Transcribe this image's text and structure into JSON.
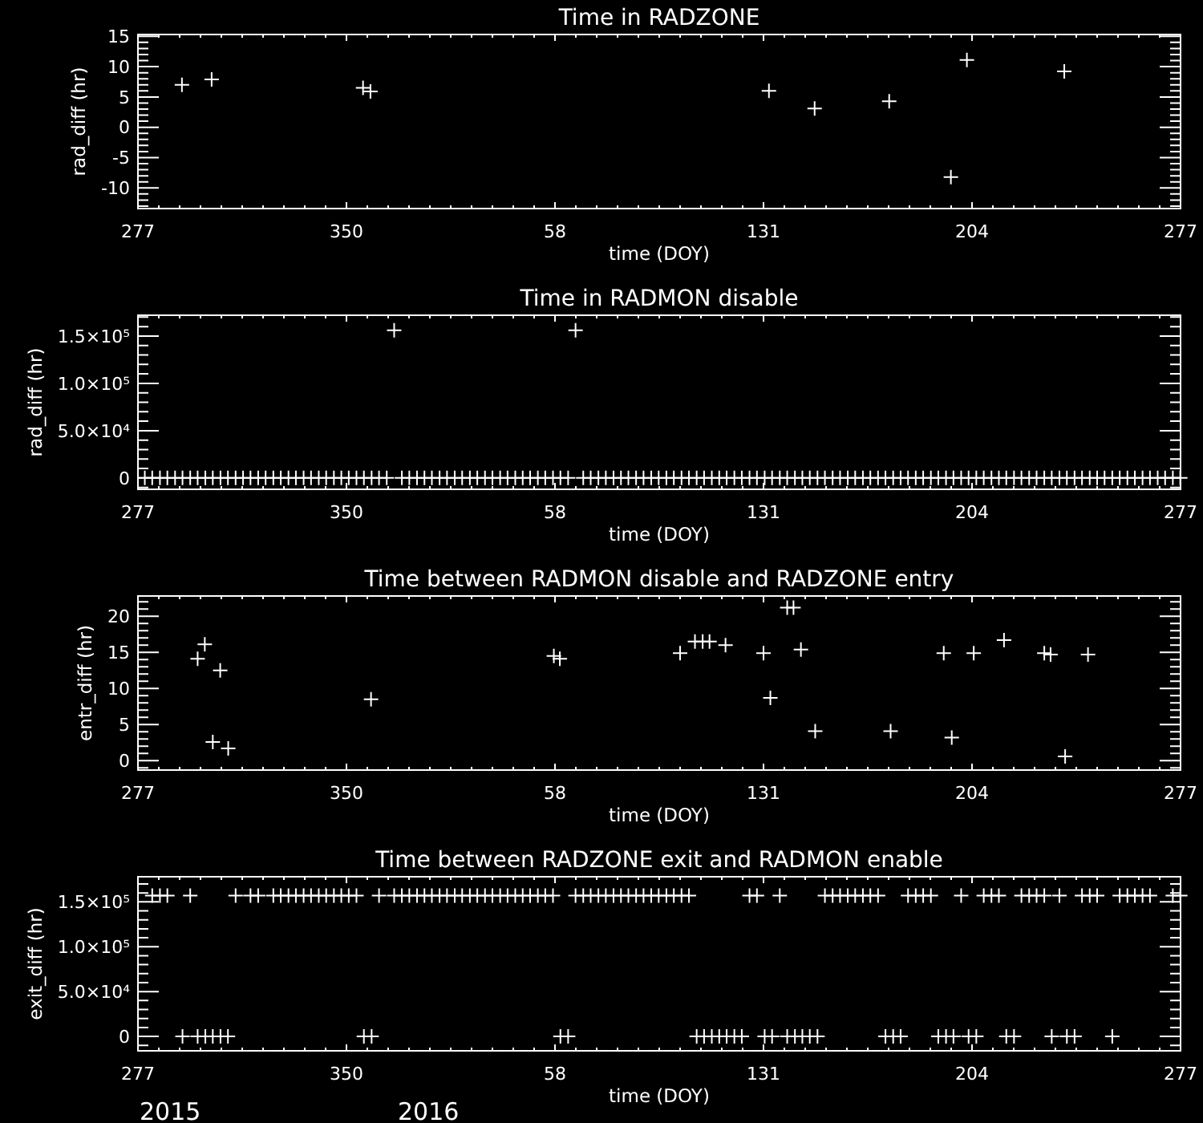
{
  "chart_data": [
    {
      "type": "scatter",
      "title": "Time in RADZONE",
      "xlabel": "time (DOY)",
      "ylabel": "rad_diff (hr)",
      "marker": "cross",
      "xlim": [
        "2015-10-04",
        "2016-10-03"
      ],
      "xticks": [
        {
          "value": "2015-10-04",
          "label": "277"
        },
        {
          "value": "2015-10-11T07:12",
          "label": null
        },
        {
          "value": "2015-10-18T14:24",
          "label": null
        },
        {
          "value": "2015-10-25T21:36",
          "label": null
        },
        {
          "value": "2015-11-02T04:48",
          "label": null
        },
        {
          "value": "2015-11-09T12:00",
          "label": null
        },
        {
          "value": "2015-11-16T19:12",
          "label": null
        },
        {
          "value": "2015-11-24T02:24",
          "label": null
        },
        {
          "value": "2015-12-01T09:36",
          "label": null
        },
        {
          "value": "2015-12-08T16:48",
          "label": null
        },
        {
          "value": "2015-12-16",
          "label": "350"
        },
        {
          "value": "2015-12-23T07:12",
          "label": null
        },
        {
          "value": "2015-12-30T14:24",
          "label": null
        },
        {
          "value": "2016-01-06T21:36",
          "label": null
        },
        {
          "value": "2016-01-14T04:48",
          "label": null
        },
        {
          "value": "2016-01-21T12:00",
          "label": null
        },
        {
          "value": "2016-01-28T19:12",
          "label": null
        },
        {
          "value": "2016-02-05T02:24",
          "label": null
        },
        {
          "value": "2016-02-12T09:36",
          "label": null
        },
        {
          "value": "2016-02-19T16:48",
          "label": null
        },
        {
          "value": "2016-02-27",
          "label": "58"
        },
        {
          "value": "2016-03-05T07:12",
          "label": null
        },
        {
          "value": "2016-03-12T14:24",
          "label": null
        },
        {
          "value": "2016-03-19T21:36",
          "label": null
        },
        {
          "value": "2016-03-27T04:48",
          "label": null
        },
        {
          "value": "2016-04-03T12:00",
          "label": null
        },
        {
          "value": "2016-04-10T19:12",
          "label": null
        },
        {
          "value": "2016-04-18T02:24",
          "label": null
        },
        {
          "value": "2016-04-25T09:36",
          "label": null
        },
        {
          "value": "2016-05-02T16:48",
          "label": null
        },
        {
          "value": "2016-05-10",
          "label": "131"
        },
        {
          "value": "2016-05-17T07:12",
          "label": null
        },
        {
          "value": "2016-05-24T14:24",
          "label": null
        },
        {
          "value": "2016-05-31T21:36",
          "label": null
        },
        {
          "value": "2016-06-08T04:48",
          "label": null
        },
        {
          "value": "2016-06-15T12:00",
          "label": null
        },
        {
          "value": "2016-06-22T19:12",
          "label": null
        },
        {
          "value": "2016-06-30T02:24",
          "label": null
        },
        {
          "value": "2016-07-07T09:36",
          "label": null
        },
        {
          "value": "2016-07-14T16:48",
          "label": null
        },
        {
          "value": "2016-07-22",
          "label": "204"
        },
        {
          "value": "2016-07-29T07:12",
          "label": null
        },
        {
          "value": "2016-08-05T14:24",
          "label": null
        },
        {
          "value": "2016-08-12T21:36",
          "label": null
        },
        {
          "value": "2016-08-20T04:48",
          "label": null
        },
        {
          "value": "2016-08-27T12:00",
          "label": null
        },
        {
          "value": "2016-09-03T19:12",
          "label": null
        },
        {
          "value": "2016-09-11T02:24",
          "label": null
        },
        {
          "value": "2016-09-18T09:36",
          "label": null
        },
        {
          "value": "2016-09-25T16:48",
          "label": null
        },
        {
          "value": "2016-10-03",
          "label": "277"
        }
      ],
      "ylim": [
        -13.4,
        15.3
      ],
      "yticks": [
        {
          "value": -13,
          "label": null
        },
        {
          "value": -12,
          "label": null
        },
        {
          "value": -11,
          "label": null
        },
        -10,
        {
          "value": -9,
          "label": null
        },
        {
          "value": -8,
          "label": null
        },
        {
          "value": -7,
          "label": null
        },
        {
          "value": -6,
          "label": null
        },
        -5,
        {
          "value": -4,
          "label": null
        },
        {
          "value": -3,
          "label": null
        },
        {
          "value": -2,
          "label": null
        },
        {
          "value": -1,
          "label": null
        },
        0,
        {
          "value": 1,
          "label": null
        },
        {
          "value": 2,
          "label": null
        },
        {
          "value": 3,
          "label": null
        },
        {
          "value": 4,
          "label": null
        },
        5,
        {
          "value": 6,
          "label": null
        },
        {
          "value": 7,
          "label": null
        },
        {
          "value": 8,
          "label": null
        },
        {
          "value": 9,
          "label": null
        },
        10,
        {
          "value": 11,
          "label": null
        },
        {
          "value": 12,
          "label": null
        },
        {
          "value": 13,
          "label": null
        },
        {
          "value": 14,
          "label": null
        },
        15
      ],
      "x": [
        "2015-10-19T09:36",
        "2015-10-29T19:12",
        "2015-12-21T19:12",
        "2015-12-24T09:36",
        "2016-05-11T21:36",
        "2016-05-27T21:36",
        "2016-06-23T00:00",
        "2016-07-14T14:24",
        "2016-07-20T04:48",
        "2016-08-23T07:12"
      ],
      "series": [
        {
          "color": "#ffffff",
          "values": [
            7.0,
            7.9,
            6.5,
            5.9,
            6.0,
            3.1,
            4.3,
            -8.2,
            11.1,
            9.2
          ]
        }
      ]
    },
    {
      "type": "scatter",
      "title": "Time in RADMON disable",
      "xlabel": "time (DOY)",
      "ylabel": "rad_diff (hr)",
      "marker": "cross",
      "xlim": [
        "2015-10-04",
        "2016-10-03"
      ],
      "xticks": [
        {
          "value": "2015-10-04",
          "label": "277"
        },
        {
          "value": "2015-10-11T07:12",
          "label": null
        },
        {
          "value": "2015-10-18T14:24",
          "label": null
        },
        {
          "value": "2015-10-25T21:36",
          "label": null
        },
        {
          "value": "2015-11-02T04:48",
          "label": null
        },
        {
          "value": "2015-11-09T12:00",
          "label": null
        },
        {
          "value": "2015-11-16T19:12",
          "label": null
        },
        {
          "value": "2015-11-24T02:24",
          "label": null
        },
        {
          "value": "2015-12-01T09:36",
          "label": null
        },
        {
          "value": "2015-12-08T16:48",
          "label": null
        },
        {
          "value": "2015-12-16",
          "label": "350"
        },
        {
          "value": "2015-12-23T07:12",
          "label": null
        },
        {
          "value": "2015-12-30T14:24",
          "label": null
        },
        {
          "value": "2016-01-06T21:36",
          "label": null
        },
        {
          "value": "2016-01-14T04:48",
          "label": null
        },
        {
          "value": "2016-01-21T12:00",
          "label": null
        },
        {
          "value": "2016-01-28T19:12",
          "label": null
        },
        {
          "value": "2016-02-05T02:24",
          "label": null
        },
        {
          "value": "2016-02-12T09:36",
          "label": null
        },
        {
          "value": "2016-02-19T16:48",
          "label": null
        },
        {
          "value": "2016-02-27",
          "label": "58"
        },
        {
          "value": "2016-03-05T07:12",
          "label": null
        },
        {
          "value": "2016-03-12T14:24",
          "label": null
        },
        {
          "value": "2016-03-19T21:36",
          "label": null
        },
        {
          "value": "2016-03-27T04:48",
          "label": null
        },
        {
          "value": "2016-04-03T12:00",
          "label": null
        },
        {
          "value": "2016-04-10T19:12",
          "label": null
        },
        {
          "value": "2016-04-18T02:24",
          "label": null
        },
        {
          "value": "2016-04-25T09:36",
          "label": null
        },
        {
          "value": "2016-05-02T16:48",
          "label": null
        },
        {
          "value": "2016-05-10",
          "label": "131"
        },
        {
          "value": "2016-05-17T07:12",
          "label": null
        },
        {
          "value": "2016-05-24T14:24",
          "label": null
        },
        {
          "value": "2016-05-31T21:36",
          "label": null
        },
        {
          "value": "2016-06-08T04:48",
          "label": null
        },
        {
          "value": "2016-06-15T12:00",
          "label": null
        },
        {
          "value": "2016-06-22T19:12",
          "label": null
        },
        {
          "value": "2016-06-30T02:24",
          "label": null
        },
        {
          "value": "2016-07-07T09:36",
          "label": null
        },
        {
          "value": "2016-07-14T16:48",
          "label": null
        },
        {
          "value": "2016-07-22",
          "label": "204"
        },
        {
          "value": "2016-07-29T07:12",
          "label": null
        },
        {
          "value": "2016-08-05T14:24",
          "label": null
        },
        {
          "value": "2016-08-12T21:36",
          "label": null
        },
        {
          "value": "2016-08-20T04:48",
          "label": null
        },
        {
          "value": "2016-08-27T12:00",
          "label": null
        },
        {
          "value": "2016-09-03T19:12",
          "label": null
        },
        {
          "value": "2016-09-11T02:24",
          "label": null
        },
        {
          "value": "2016-09-18T09:36",
          "label": null
        },
        {
          "value": "2016-09-25T16:48",
          "label": null
        },
        {
          "value": "2016-10-03",
          "label": "277"
        }
      ],
      "ylim": [
        -12000,
        172000
      ],
      "yticks": [
        {
          "value": -10000,
          "label": null
        },
        0,
        {
          "value": 10000,
          "label": null
        },
        {
          "value": 20000,
          "label": null
        },
        {
          "value": 30000,
          "label": null
        },
        {
          "value": 40000,
          "label": null
        },
        {
          "value": 50000,
          "label": "5.0×10⁴"
        },
        {
          "value": 60000,
          "label": null
        },
        {
          "value": 70000,
          "label": null
        },
        {
          "value": 80000,
          "label": null
        },
        {
          "value": 90000,
          "label": null
        },
        {
          "value": 100000,
          "label": "1.0×10⁵"
        },
        {
          "value": 110000,
          "label": null
        },
        {
          "value": 120000,
          "label": null
        },
        {
          "value": 130000,
          "label": null
        },
        {
          "value": 140000,
          "label": null
        },
        {
          "value": 150000,
          "label": "1.5×10⁵"
        },
        {
          "value": 160000,
          "label": null
        },
        {
          "value": 170000,
          "label": null
        }
      ],
      "x": [
        "2015-10-06T09:36",
        "2015-10-09T00:00",
        "2015-10-11T16:48",
        "2015-10-14T07:12",
        "2015-10-17T00:00",
        "2015-10-19T14:24",
        "2015-10-22T07:12",
        "2015-10-24T21:36",
        "2015-10-27T14:24",
        "2015-10-30T04:48",
        "2015-11-01T21:36",
        "2015-11-04T12:00",
        "2015-11-07T04:48",
        "2015-11-09T19:12",
        "2015-11-12T09:36",
        "2015-11-15T02:24",
        "2015-11-17T16:48",
        "2015-11-20T09:36",
        "2015-11-23T00:00",
        "2015-11-25T16:48",
        "2015-11-28T07:12",
        "2015-12-01T00:00",
        "2015-12-03T14:24",
        "2015-12-06T07:12",
        "2015-12-08T21:36",
        "2015-12-11T14:24",
        "2015-12-14T04:48",
        "2015-12-16T19:12",
        "2015-12-19T12:00",
        "2015-12-22T02:24",
        "2015-12-24T19:12",
        "2015-12-27T09:36",
        "2015-12-30T02:24",
        "2016-01-01T16:48",
        "2016-01-04T09:36",
        "2016-01-07T00:00",
        "2016-01-09T16:48",
        "2016-01-12T07:12",
        "2016-01-14T21:36",
        "2016-01-17T14:24",
        "2016-01-20T04:48",
        "2016-01-22T21:36",
        "2016-01-25T12:00",
        "2016-01-28T04:48",
        "2016-01-30T19:12",
        "2016-02-02T12:00",
        "2016-02-05T02:24",
        "2016-02-07T19:12",
        "2016-02-10T09:36",
        "2016-02-13T02:24",
        "2016-02-15T16:48",
        "2016-02-18T07:12",
        "2016-02-21T00:00",
        "2016-02-23T14:24",
        "2016-02-26T07:12",
        "2016-02-28T21:36",
        "2016-03-02T14:24",
        "2016-03-05T04:48",
        "2016-03-07T21:36",
        "2016-03-10T12:00",
        "2016-03-13T04:48",
        "2016-03-15T19:12",
        "2016-03-18T12:00",
        "2016-03-21T02:24",
        "2016-03-23T16:48",
        "2016-03-26T09:36",
        "2016-03-29T00:00",
        "2016-03-31T16:48",
        "2016-04-03T07:12",
        "2016-04-06T00:00",
        "2016-04-08T14:24",
        "2016-04-11T07:12",
        "2016-04-13T21:36",
        "2016-04-16T14:24",
        "2016-04-19T04:48",
        "2016-04-21T21:36",
        "2016-04-24T12:00",
        "2016-04-27T02:24",
        "2016-04-29T19:12",
        "2016-05-02T09:36",
        "2016-05-05T02:24",
        "2016-05-07T16:48",
        "2016-05-10T09:36",
        "2016-05-13T00:00",
        "2016-05-15T16:48",
        "2016-05-18T07:12",
        "2016-05-21T00:00",
        "2016-05-23T14:24",
        "2016-05-26T04:48",
        "2016-05-28T21:36",
        "2016-05-31T12:00",
        "2016-06-03T04:48",
        "2016-06-05T19:12",
        "2016-06-08T12:00",
        "2016-06-11T02:24",
        "2016-06-13T19:12",
        "2016-06-16T09:36",
        "2016-06-19T02:24",
        "2016-06-21T16:48",
        "2016-06-24T09:36",
        "2016-06-27T00:00",
        "2016-06-29T14:24",
        "2016-07-02T07:12",
        "2016-07-04T21:36",
        "2016-07-07T14:24",
        "2016-07-10T04:48",
        "2016-07-12T21:36",
        "2016-07-15T12:00",
        "2016-07-18T04:48",
        "2016-07-20T19:12",
        "2016-07-23T12:00",
        "2016-07-26T02:24",
        "2016-07-28T19:12",
        "2016-07-31T09:36",
        "2016-08-03T00:00",
        "2016-08-05T16:48",
        "2016-08-08T07:12",
        "2016-08-11T00:00",
        "2016-08-13T14:24",
        "2016-08-16T07:12",
        "2016-08-18T21:36",
        "2016-08-21T14:24",
        "2016-08-24T04:48",
        "2016-08-26T21:36",
        "2016-08-29T12:00",
        "2016-09-01T04:48",
        "2016-09-03T19:12",
        "2016-09-06T09:36",
        "2016-09-09T02:24",
        "2016-09-11T16:48",
        "2016-09-14T09:36",
        "2016-09-17T00:00",
        "2016-09-19T16:48",
        "2016-09-22T07:12",
        "2016-09-25T00:00",
        "2016-09-27T14:24",
        "2016-09-30T07:12",
        "2016-10-02T21:36"
      ],
      "series": [
        {
          "color": "#ffffff",
          "values": [
            0,
            0,
            0,
            0,
            0,
            0,
            0,
            0,
            0,
            0,
            0,
            0,
            0,
            0,
            0,
            0,
            0,
            0,
            0,
            0,
            0,
            0,
            0,
            0,
            0,
            0,
            0,
            0,
            0,
            0,
            0,
            0,
            0,
            156000,
            0,
            0,
            0,
            0,
            0,
            0,
            0,
            0,
            0,
            0,
            0,
            0,
            0,
            0,
            0,
            0,
            0,
            0,
            0,
            0,
            0,
            0,
            0,
            156000,
            0,
            0,
            0,
            0,
            0,
            0,
            0,
            0,
            0,
            0,
            0,
            0,
            0,
            0,
            0,
            0,
            0,
            0,
            0,
            0,
            0,
            0,
            0,
            0,
            0,
            0,
            0,
            0,
            0,
            0,
            0,
            0,
            0,
            0,
            0,
            0,
            0,
            0,
            0,
            0,
            0,
            0,
            0,
            0,
            0,
            0,
            0,
            0,
            0,
            0,
            0,
            0,
            0,
            0,
            0,
            0,
            0,
            0,
            0,
            0,
            0,
            0,
            0,
            0,
            0,
            0,
            0,
            0,
            0,
            0,
            0,
            0,
            0,
            0,
            0,
            0,
            0,
            0,
            0,
            0
          ]
        }
      ]
    },
    {
      "type": "scatter",
      "title": "Time between RADMON disable and RADZONE entry",
      "xlabel": "time (DOY)",
      "ylabel": "entr_diff (hr)",
      "marker": "cross",
      "xlim": [
        "2015-10-04",
        "2016-10-03"
      ],
      "xticks": [
        {
          "value": "2015-10-04",
          "label": "277"
        },
        {
          "value": "2015-10-11T07:12",
          "label": null
        },
        {
          "value": "2015-10-18T14:24",
          "label": null
        },
        {
          "value": "2015-10-25T21:36",
          "label": null
        },
        {
          "value": "2015-11-02T04:48",
          "label": null
        },
        {
          "value": "2015-11-09T12:00",
          "label": null
        },
        {
          "value": "2015-11-16T19:12",
          "label": null
        },
        {
          "value": "2015-11-24T02:24",
          "label": null
        },
        {
          "value": "2015-12-01T09:36",
          "label": null
        },
        {
          "value": "2015-12-08T16:48",
          "label": null
        },
        {
          "value": "2015-12-16",
          "label": "350"
        },
        {
          "value": "2015-12-23T07:12",
          "label": null
        },
        {
          "value": "2015-12-30T14:24",
          "label": null
        },
        {
          "value": "2016-01-06T21:36",
          "label": null
        },
        {
          "value": "2016-01-14T04:48",
          "label": null
        },
        {
          "value": "2016-01-21T12:00",
          "label": null
        },
        {
          "value": "2016-01-28T19:12",
          "label": null
        },
        {
          "value": "2016-02-05T02:24",
          "label": null
        },
        {
          "value": "2016-02-12T09:36",
          "label": null
        },
        {
          "value": "2016-02-19T16:48",
          "label": null
        },
        {
          "value": "2016-02-27",
          "label": "58"
        },
        {
          "value": "2016-03-05T07:12",
          "label": null
        },
        {
          "value": "2016-03-12T14:24",
          "label": null
        },
        {
          "value": "2016-03-19T21:36",
          "label": null
        },
        {
          "value": "2016-03-27T04:48",
          "label": null
        },
        {
          "value": "2016-04-03T12:00",
          "label": null
        },
        {
          "value": "2016-04-10T19:12",
          "label": null
        },
        {
          "value": "2016-04-18T02:24",
          "label": null
        },
        {
          "value": "2016-04-25T09:36",
          "label": null
        },
        {
          "value": "2016-05-02T16:48",
          "label": null
        },
        {
          "value": "2016-05-10",
          "label": "131"
        },
        {
          "value": "2016-05-17T07:12",
          "label": null
        },
        {
          "value": "2016-05-24T14:24",
          "label": null
        },
        {
          "value": "2016-05-31T21:36",
          "label": null
        },
        {
          "value": "2016-06-08T04:48",
          "label": null
        },
        {
          "value": "2016-06-15T12:00",
          "label": null
        },
        {
          "value": "2016-06-22T19:12",
          "label": null
        },
        {
          "value": "2016-06-30T02:24",
          "label": null
        },
        {
          "value": "2016-07-07T09:36",
          "label": null
        },
        {
          "value": "2016-07-14T16:48",
          "label": null
        },
        {
          "value": "2016-07-22",
          "label": "204"
        },
        {
          "value": "2016-07-29T07:12",
          "label": null
        },
        {
          "value": "2016-08-05T14:24",
          "label": null
        },
        {
          "value": "2016-08-12T21:36",
          "label": null
        },
        {
          "value": "2016-08-20T04:48",
          "label": null
        },
        {
          "value": "2016-08-27T12:00",
          "label": null
        },
        {
          "value": "2016-09-03T19:12",
          "label": null
        },
        {
          "value": "2016-09-11T02:24",
          "label": null
        },
        {
          "value": "2016-09-18T09:36",
          "label": null
        },
        {
          "value": "2016-09-25T16:48",
          "label": null
        },
        {
          "value": "2016-10-03",
          "label": "277"
        }
      ],
      "ylim": [
        -1.3,
        22.8
      ],
      "yticks": [
        {
          "value": -1,
          "label": null
        },
        0,
        {
          "value": 1,
          "label": null
        },
        {
          "value": 2,
          "label": null
        },
        {
          "value": 3,
          "label": null
        },
        {
          "value": 4,
          "label": null
        },
        5,
        {
          "value": 6,
          "label": null
        },
        {
          "value": 7,
          "label": null
        },
        {
          "value": 8,
          "label": null
        },
        {
          "value": 9,
          "label": null
        },
        10,
        {
          "value": 11,
          "label": null
        },
        {
          "value": 12,
          "label": null
        },
        {
          "value": 13,
          "label": null
        },
        {
          "value": 14,
          "label": null
        },
        15,
        {
          "value": 16,
          "label": null
        },
        {
          "value": 17,
          "label": null
        },
        {
          "value": 18,
          "label": null
        },
        {
          "value": 19,
          "label": null
        },
        20,
        {
          "value": 21,
          "label": null
        },
        {
          "value": 22,
          "label": null
        }
      ],
      "x": [
        "2015-10-24T21:36",
        "2015-10-27T09:36",
        "2015-10-30T04:48",
        "2015-11-01T19:12",
        "2015-11-04T14:24",
        "2015-12-24T14:24",
        "2016-02-26T14:24",
        "2016-02-28T16:48",
        "2016-04-10T19:12",
        "2016-04-16T00:00",
        "2016-04-18T16:48",
        "2016-04-21T02:24",
        "2016-04-26T16:48",
        "2016-05-10T00:00",
        "2016-05-12T09:36",
        "2016-05-18T07:12",
        "2016-05-20T12:00",
        "2016-05-23T02:24",
        "2016-05-28T02:24",
        "2016-06-23T12:00",
        "2016-07-12T02:24",
        "2016-07-14T21:36",
        "2016-07-22T14:24",
        "2016-08-02T04:48",
        "2016-08-16T07:12",
        "2016-08-18T12:00",
        "2016-08-23T14:24",
        "2016-08-31T14:24"
      ],
      "series": [
        {
          "color": "#ffffff",
          "values": [
            14.1,
            16.1,
            2.6,
            12.5,
            1.7,
            8.5,
            14.5,
            14.1,
            14.9,
            16.5,
            16.5,
            16.5,
            16.0,
            14.9,
            8.7,
            21.2,
            21.2,
            15.4,
            4.1,
            4.1,
            14.9,
            3.2,
            14.9,
            16.7,
            14.9,
            14.7,
            0.6,
            14.7
          ]
        }
      ]
    },
    {
      "type": "scatter",
      "title": "Time between RADZONE exit and RADMON enable",
      "xlabel": "time (DOY)",
      "ylabel": "exit_diff (hr)",
      "marker": "cross",
      "xlim": [
        "2015-10-04",
        "2016-10-03"
      ],
      "xticks": [
        {
          "value": "2015-10-04",
          "label": "277"
        },
        {
          "value": "2015-10-11T07:12",
          "label": null
        },
        {
          "value": "2015-10-18T14:24",
          "label": null
        },
        {
          "value": "2015-10-25T21:36",
          "label": null
        },
        {
          "value": "2015-11-02T04:48",
          "label": null
        },
        {
          "value": "2015-11-09T12:00",
          "label": null
        },
        {
          "value": "2015-11-16T19:12",
          "label": null
        },
        {
          "value": "2015-11-24T02:24",
          "label": null
        },
        {
          "value": "2015-12-01T09:36",
          "label": null
        },
        {
          "value": "2015-12-08T16:48",
          "label": null
        },
        {
          "value": "2015-12-16",
          "label": "350"
        },
        {
          "value": "2015-12-23T07:12",
          "label": null
        },
        {
          "value": "2015-12-30T14:24",
          "label": null
        },
        {
          "value": "2016-01-06T21:36",
          "label": null
        },
        {
          "value": "2016-01-14T04:48",
          "label": null
        },
        {
          "value": "2016-01-21T12:00",
          "label": null
        },
        {
          "value": "2016-01-28T19:12",
          "label": null
        },
        {
          "value": "2016-02-05T02:24",
          "label": null
        },
        {
          "value": "2016-02-12T09:36",
          "label": null
        },
        {
          "value": "2016-02-19T16:48",
          "label": null
        },
        {
          "value": "2016-02-27",
          "label": "58"
        },
        {
          "value": "2016-03-05T07:12",
          "label": null
        },
        {
          "value": "2016-03-12T14:24",
          "label": null
        },
        {
          "value": "2016-03-19T21:36",
          "label": null
        },
        {
          "value": "2016-03-27T04:48",
          "label": null
        },
        {
          "value": "2016-04-03T12:00",
          "label": null
        },
        {
          "value": "2016-04-10T19:12",
          "label": null
        },
        {
          "value": "2016-04-18T02:24",
          "label": null
        },
        {
          "value": "2016-04-25T09:36",
          "label": null
        },
        {
          "value": "2016-05-02T16:48",
          "label": null
        },
        {
          "value": "2016-05-10",
          "label": "131"
        },
        {
          "value": "2016-05-17T07:12",
          "label": null
        },
        {
          "value": "2016-05-24T14:24",
          "label": null
        },
        {
          "value": "2016-05-31T21:36",
          "label": null
        },
        {
          "value": "2016-06-08T04:48",
          "label": null
        },
        {
          "value": "2016-06-15T12:00",
          "label": null
        },
        {
          "value": "2016-06-22T19:12",
          "label": null
        },
        {
          "value": "2016-06-30T02:24",
          "label": null
        },
        {
          "value": "2016-07-07T09:36",
          "label": null
        },
        {
          "value": "2016-07-14T16:48",
          "label": null
        },
        {
          "value": "2016-07-22",
          "label": "204"
        },
        {
          "value": "2016-07-29T07:12",
          "label": null
        },
        {
          "value": "2016-08-05T14:24",
          "label": null
        },
        {
          "value": "2016-08-12T21:36",
          "label": null
        },
        {
          "value": "2016-08-20T04:48",
          "label": null
        },
        {
          "value": "2016-08-27T12:00",
          "label": null
        },
        {
          "value": "2016-09-03T19:12",
          "label": null
        },
        {
          "value": "2016-09-11T02:24",
          "label": null
        },
        {
          "value": "2016-09-18T09:36",
          "label": null
        },
        {
          "value": "2016-09-25T16:48",
          "label": null
        },
        {
          "value": "2016-10-03",
          "label": "277"
        }
      ],
      "ylim": [
        -16000,
        178000
      ],
      "yticks": [
        {
          "value": -10000,
          "label": null
        },
        0,
        {
          "value": 10000,
          "label": null
        },
        {
          "value": 20000,
          "label": null
        },
        {
          "value": 30000,
          "label": null
        },
        {
          "value": 40000,
          "label": null
        },
        {
          "value": 50000,
          "label": "5.0×10⁴"
        },
        {
          "value": 60000,
          "label": null
        },
        {
          "value": 70000,
          "label": null
        },
        {
          "value": 80000,
          "label": null
        },
        {
          "value": 90000,
          "label": null
        },
        {
          "value": 100000,
          "label": "1.0×10⁵"
        },
        {
          "value": 110000,
          "label": null
        },
        {
          "value": 120000,
          "label": null
        },
        {
          "value": 130000,
          "label": null
        },
        {
          "value": 140000,
          "label": null
        },
        {
          "value": 150000,
          "label": "1.5×10⁵"
        },
        {
          "value": 160000,
          "label": null
        },
        {
          "value": 170000,
          "label": null
        }
      ],
      "annotations": [
        "2015",
        "2016"
      ],
      "x": [
        "2015-10-09T00:00",
        "2015-10-11T16:48",
        "2015-10-14T07:12",
        "2015-10-19T14:24",
        "2015-10-22T07:12",
        "2015-10-24T21:36",
        "2015-10-27T14:24",
        "2015-10-30T04:48",
        "2015-11-01T21:36",
        "2015-11-04T12:00",
        "2015-11-07T04:48",
        "2015-11-12T09:36",
        "2015-11-15T02:24",
        "2015-11-20T09:36",
        "2015-11-23T00:00",
        "2015-11-25T16:48",
        "2015-11-28T07:12",
        "2015-12-01T00:00",
        "2015-12-03T14:24",
        "2015-12-06T07:12",
        "2015-12-08T21:36",
        "2015-12-11T14:24",
        "2015-12-14T04:48",
        "2015-12-16T19:12",
        "2015-12-19T12:00",
        "2015-12-22T02:24",
        "2015-12-24T19:12",
        "2015-12-27T09:36",
        "2016-01-01T16:48",
        "2016-01-04T09:36",
        "2016-01-07T00:00",
        "2016-01-09T16:48",
        "2016-01-12T07:12",
        "2016-01-14T21:36",
        "2016-01-17T14:24",
        "2016-01-20T04:48",
        "2016-01-22T21:36",
        "2016-01-25T12:00",
        "2016-01-28T04:48",
        "2016-01-30T19:12",
        "2016-02-02T12:00",
        "2016-02-05T02:24",
        "2016-02-07T19:12",
        "2016-02-10T09:36",
        "2016-02-13T02:24",
        "2016-02-15T16:48",
        "2016-02-18T07:12",
        "2016-02-21T00:00",
        "2016-02-23T14:24",
        "2016-02-26T07:12",
        "2016-02-28T21:36",
        "2016-03-02T14:24",
        "2016-03-05T04:48",
        "2016-03-07T21:36",
        "2016-03-10T12:00",
        "2016-03-13T04:48",
        "2016-03-15T19:12",
        "2016-03-18T12:00",
        "2016-03-21T02:24",
        "2016-03-23T16:48",
        "2016-03-26T09:36",
        "2016-03-29T00:00",
        "2016-03-31T16:48",
        "2016-04-03T07:12",
        "2016-04-06T00:00",
        "2016-04-08T14:24",
        "2016-04-11T07:12",
        "2016-04-13T21:36",
        "2016-04-16T14:24",
        "2016-04-19T04:48",
        "2016-04-21T21:36",
        "2016-04-24T12:00",
        "2016-04-27T02:24",
        "2016-04-29T19:12",
        "2016-05-02T09:36",
        "2016-05-05T02:24",
        "2016-05-07T16:48",
        "2016-05-10T09:36",
        "2016-05-13T00:00",
        "2016-05-15T16:48",
        "2016-05-18T07:12",
        "2016-05-21T00:00",
        "2016-05-23T14:24",
        "2016-05-26T04:48",
        "2016-05-28T21:36",
        "2016-05-31T12:00",
        "2016-06-03T04:48",
        "2016-06-05T19:12",
        "2016-06-08T12:00",
        "2016-06-11T02:24",
        "2016-06-13T19:12",
        "2016-06-16T09:36",
        "2016-06-19T02:24",
        "2016-06-21T16:48",
        "2016-06-24T09:36",
        "2016-06-27T00:00",
        "2016-06-29T14:24",
        "2016-07-02T07:12",
        "2016-07-04T21:36",
        "2016-07-07T14:24",
        "2016-07-10T04:48",
        "2016-07-12T21:36",
        "2016-07-15T12:00",
        "2016-07-18T04:48",
        "2016-07-20T19:12",
        "2016-07-23T12:00",
        "2016-07-26T02:24",
        "2016-07-28T19:12",
        "2016-07-31T09:36",
        "2016-08-03T00:00",
        "2016-08-05T16:48",
        "2016-08-08T07:12",
        "2016-08-11T00:00",
        "2016-08-13T14:24",
        "2016-08-16T07:12",
        "2016-08-18T21:36",
        "2016-08-21T14:24",
        "2016-08-24T04:48",
        "2016-08-26T21:36",
        "2016-08-29T12:00",
        "2016-09-01T04:48",
        "2016-09-03T19:12",
        "2016-09-09T02:24",
        "2016-09-11T16:48",
        "2016-09-14T09:36",
        "2016-09-17T00:00",
        "2016-09-19T16:48",
        "2016-09-22T07:12",
        "2016-09-30T07:12",
        "2016-10-02T21:36"
      ],
      "series": [
        {
          "color": "#ffffff",
          "values": [
            157000,
            157000,
            157000,
            0,
            157000,
            0,
            0,
            0,
            0,
            0,
            157000,
            157000,
            157000,
            157000,
            157000,
            157000,
            157000,
            157000,
            157000,
            157000,
            157000,
            157000,
            157000,
            157000,
            157000,
            0,
            0,
            157000,
            157000,
            157000,
            157000,
            157000,
            157000,
            157000,
            157000,
            157000,
            157000,
            157000,
            157000,
            157000,
            157000,
            157000,
            157000,
            157000,
            157000,
            157000,
            157000,
            157000,
            157000,
            157000,
            0,
            0,
            157000,
            157000,
            157000,
            157000,
            157000,
            157000,
            157000,
            157000,
            157000,
            157000,
            157000,
            157000,
            157000,
            157000,
            157000,
            157000,
            0,
            0,
            0,
            0,
            0,
            0,
            0,
            157000,
            157000,
            0,
            0,
            157000,
            0,
            0,
            0,
            0,
            0,
            157000,
            157000,
            157000,
            157000,
            157000,
            157000,
            157000,
            157000,
            0,
            0,
            0,
            157000,
            157000,
            157000,
            157000,
            0,
            0,
            0,
            157000,
            0,
            0,
            157000,
            157000,
            157000,
            0,
            0,
            157000,
            157000,
            157000,
            157000,
            0,
            157000,
            0,
            0,
            157000,
            157000,
            157000,
            0,
            157000,
            157000,
            157000,
            157000,
            157000,
            157000,
            157000
          ]
        }
      ]
    }
  ]
}
